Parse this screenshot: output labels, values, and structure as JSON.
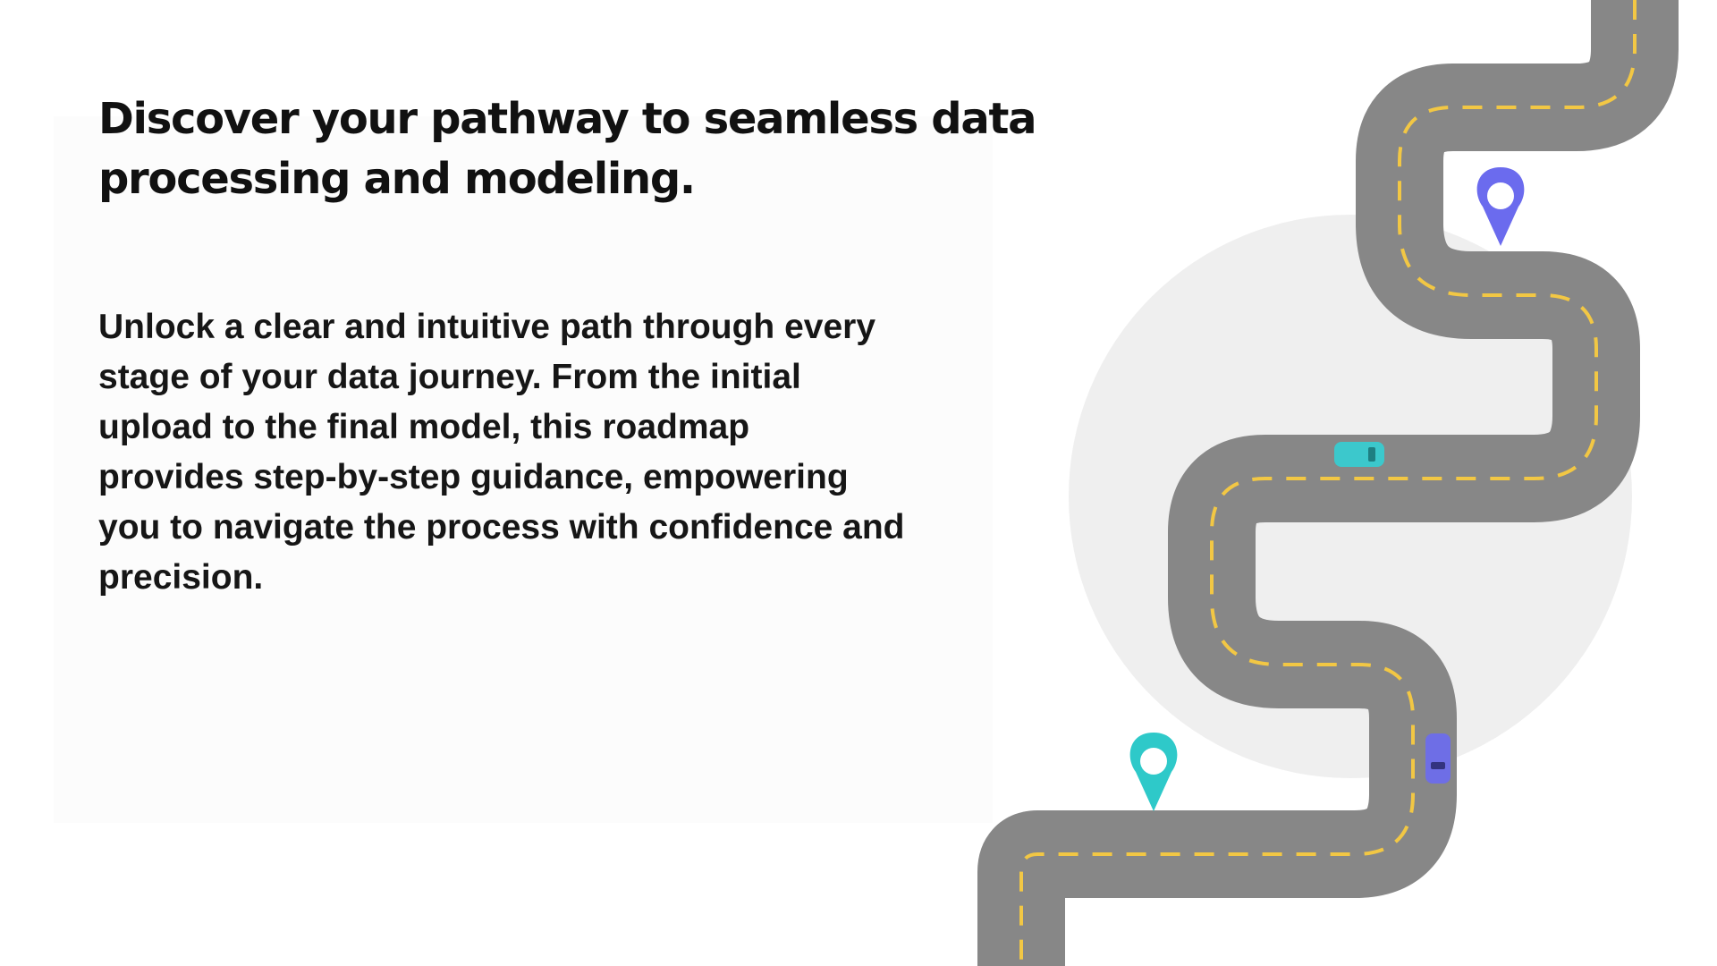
{
  "headline": {
    "line1": "Discover your pathway to seamless data",
    "line2": "processing and modeling."
  },
  "body": {
    "lines": [
      "Unlock a clear and intuitive path through every",
      "stage of your data journey. From the initial",
      "upload to the final model, this roadmap",
      "provides step-by-step guidance, empowering",
      "you to navigate the process with confidence and",
      "precision."
    ]
  },
  "illustration": {
    "road_color": "#878787",
    "lane_color": "#f2c744",
    "circle_color": "#efefef",
    "pin_upper_color": "#6b6bee",
    "pin_lower_color": "#2ec9c9",
    "car_teal_color": "#3cc8cc",
    "car_blue_color": "#6e6ee6",
    "icons": [
      "map-pin-icon",
      "map-pin-icon",
      "car-icon",
      "car-icon"
    ]
  }
}
